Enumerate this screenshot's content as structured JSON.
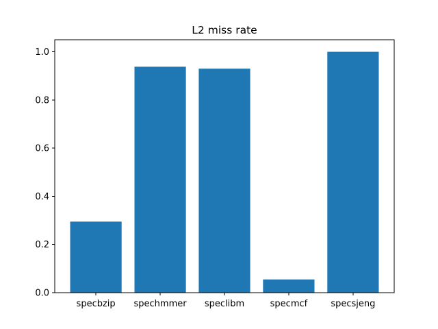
{
  "chart_data": {
    "type": "bar",
    "title": "L2 miss rate",
    "xlabel": "",
    "ylabel": "",
    "categories": [
      "specbzip",
      "spechmmer",
      "speclibm",
      "specmcf",
      "specsjeng"
    ],
    "values": [
      0.295,
      0.938,
      0.93,
      0.055,
      1.0
    ],
    "ylim": [
      0,
      1.05
    ],
    "yticks": [
      0.0,
      0.2,
      0.4,
      0.6,
      0.8,
      1.0
    ],
    "ytick_labels": [
      "0.0",
      "0.2",
      "0.4",
      "0.6",
      "0.8",
      "1.0"
    ],
    "grid": false,
    "legend": "none",
    "bar_color": "#1f77b4"
  }
}
